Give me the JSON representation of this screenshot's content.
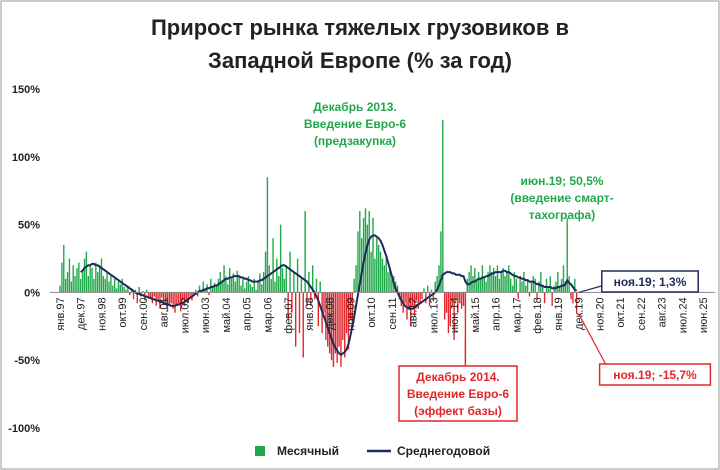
{
  "chart_data": {
    "type": "bar-line",
    "title": [
      "Прирост рынка тяжелых грузовиков в",
      "Западной Европе (% за год)"
    ],
    "categories": [
      "янв.97",
      null,
      null,
      null,
      null,
      null,
      null,
      null,
      null,
      null,
      null,
      "дек.97",
      null,
      null,
      null,
      null,
      null,
      null,
      null,
      null,
      null,
      null,
      "ноя.98",
      null,
      null,
      null,
      null,
      null,
      null,
      null,
      null,
      null,
      null,
      "окт.99",
      null,
      null,
      null,
      null,
      null,
      null,
      null,
      null,
      null,
      null,
      "сен.00",
      null,
      null,
      null,
      null,
      null,
      null,
      null,
      null,
      null,
      null,
      "авг.01",
      null,
      null,
      null,
      null,
      null,
      null,
      null,
      null,
      null,
      null,
      "июл.02",
      null,
      null,
      null,
      null,
      null,
      null,
      null,
      null,
      null,
      null,
      "июн.03",
      null,
      null,
      null,
      null,
      null,
      null,
      null,
      null,
      null,
      null,
      "май.04",
      null,
      null,
      null,
      null,
      null,
      null,
      null,
      null,
      null,
      null,
      "апр.05",
      null,
      null,
      null,
      null,
      null,
      null,
      null,
      null,
      null,
      null,
      "мар.06",
      null,
      null,
      null,
      null,
      null,
      null,
      null,
      null,
      null,
      null,
      "фев.07",
      null,
      null,
      null,
      null,
      null,
      null,
      null,
      null,
      null,
      null,
      "янв.08",
      null,
      null,
      null,
      null,
      null,
      null,
      null,
      null,
      null,
      null,
      "дек.08",
      null,
      null,
      null,
      null,
      null,
      null,
      null,
      null,
      null,
      null,
      "ноя.09",
      null,
      null,
      null,
      null,
      null,
      null,
      null,
      null,
      null,
      null,
      "окт.10",
      null,
      null,
      null,
      null,
      null,
      null,
      null,
      null,
      null,
      null,
      "сен.11",
      null,
      null,
      null,
      null,
      null,
      null,
      null,
      null,
      null,
      null,
      "авг.12",
      null,
      null,
      null,
      null,
      null,
      null,
      null,
      null,
      null,
      null,
      "июл.13",
      null,
      null,
      null,
      null,
      null,
      null,
      null,
      null,
      null,
      null,
      "июн.14",
      null,
      null,
      null,
      null,
      null,
      null,
      null,
      null,
      null,
      null,
      "май.15",
      null,
      null,
      null,
      null,
      null,
      null,
      null,
      null,
      null,
      null,
      "апр.16",
      null,
      null,
      null,
      null,
      null,
      null,
      null,
      null,
      null,
      null,
      "мар.17",
      null,
      null,
      null,
      null,
      null,
      null,
      null,
      null,
      null,
      null,
      "фев.18",
      null,
      null,
      null,
      null,
      null,
      null,
      null,
      null,
      null,
      null,
      "янв.19",
      null,
      null,
      null,
      null,
      null,
      null,
      null,
      null,
      null,
      null,
      "дек.19",
      null,
      null,
      null,
      null,
      null,
      null,
      null,
      null,
      null,
      null,
      "ноя.20",
      null,
      null,
      null,
      null,
      null,
      null,
      null,
      null,
      null,
      null,
      "окт.21",
      null,
      null,
      null,
      null,
      null,
      null,
      null,
      null,
      null,
      null,
      "сен.22",
      null,
      null,
      null,
      null,
      null,
      null,
      null,
      null,
      null,
      null,
      "авг.23",
      null,
      null,
      null,
      null,
      null,
      null,
      null,
      null,
      null,
      null,
      "июл.24",
      null,
      null,
      null,
      null,
      null,
      null,
      null,
      null,
      null,
      null,
      "июн.25"
    ],
    "series": [
      {
        "name": "Месячный",
        "kind": "bar",
        "color": "#21a84a",
        "negative_color": "#e3262b",
        "values": [
          5,
          22,
          35,
          10,
          15,
          25,
          8,
          20,
          12,
          18,
          22,
          10,
          15,
          25,
          30,
          12,
          20,
          18,
          10,
          22,
          15,
          20,
          25,
          12,
          10,
          15,
          8,
          12,
          5,
          10,
          3,
          8,
          6,
          10,
          4,
          2,
          5,
          -2,
          3,
          -5,
          2,
          -8,
          4,
          -3,
          1,
          -6,
          2,
          -4,
          -5,
          -8,
          -3,
          -10,
          -6,
          -12,
          -4,
          -9,
          -7,
          -14,
          -10,
          -8,
          -12,
          -15,
          -10,
          -8,
          -14,
          -6,
          -10,
          -5,
          -8,
          -3,
          -6,
          -2,
          2,
          -3,
          5,
          1,
          8,
          3,
          6,
          -2,
          10,
          4,
          7,
          5,
          10,
          15,
          8,
          20,
          12,
          6,
          18,
          10,
          14,
          8,
          16,
          12,
          5,
          10,
          3,
          8,
          12,
          6,
          4,
          10,
          2,
          8,
          14,
          6,
          15,
          30,
          85,
          20,
          10,
          40,
          8,
          25,
          12,
          50,
          18,
          10,
          20,
          -20,
          30,
          -15,
          15,
          -40,
          25,
          -30,
          10,
          -48,
          60,
          -10,
          15,
          -10,
          20,
          -5,
          10,
          -25,
          8,
          -30,
          -15,
          -35,
          -40,
          -45,
          -50,
          -55,
          -45,
          -52,
          -40,
          -55,
          -35,
          -48,
          -30,
          -42,
          -20,
          -25,
          10,
          20,
          45,
          60,
          40,
          55,
          62,
          50,
          60,
          30,
          55,
          25,
          40,
          35,
          30,
          25,
          20,
          25,
          15,
          18,
          10,
          12,
          8,
          5,
          -5,
          -10,
          -15,
          -8,
          -20,
          -12,
          -25,
          -10,
          -18,
          -5,
          -12,
          -8,
          -5,
          3,
          -8,
          5,
          -10,
          2,
          -6,
          8,
          12,
          20,
          45,
          127,
          -20,
          -15,
          -30,
          -25,
          -10,
          -35,
          -5,
          -15,
          -8,
          -12,
          -10,
          -60,
          10,
          15,
          20,
          12,
          18,
          8,
          15,
          10,
          20,
          12,
          8,
          15,
          20,
          15,
          18,
          12,
          20,
          10,
          15,
          18,
          12,
          15,
          20,
          10,
          5,
          15,
          10,
          -5,
          12,
          8,
          15,
          5,
          10,
          -3,
          8,
          12,
          10,
          -5,
          8,
          15,
          5,
          -8,
          10,
          3,
          12,
          -10,
          5,
          8,
          15,
          5,
          10,
          20,
          8,
          50.5,
          12,
          -5,
          -8,
          10,
          -15.7,
          null,
          null,
          null,
          null,
          null,
          null,
          null,
          null,
          null,
          null,
          null,
          null,
          null,
          null,
          null,
          null,
          null,
          null,
          null,
          null,
          null,
          null,
          null,
          null,
          null,
          null,
          null,
          null,
          null,
          null,
          null,
          null,
          null,
          null,
          null,
          null,
          null,
          null,
          null,
          null,
          null,
          null,
          null,
          null,
          null,
          null,
          null,
          null,
          null,
          null,
          null,
          null,
          null,
          null,
          null,
          null,
          null,
          null,
          null,
          null,
          null,
          null,
          null,
          null,
          null,
          null,
          null
        ]
      },
      {
        "name": "Среднегодовой",
        "kind": "line",
        "color": "#1f2a5c",
        "values": [
          null,
          null,
          null,
          null,
          null,
          null,
          null,
          null,
          null,
          null,
          null,
          15,
          16,
          18,
          19,
          20,
          20,
          21,
          21,
          20,
          20,
          19,
          18,
          17,
          16,
          15,
          14,
          13,
          12,
          11,
          10,
          9,
          8,
          7,
          6,
          5,
          4,
          3,
          2,
          1,
          0,
          -1,
          -1,
          -2,
          -2,
          -3,
          -3,
          -4,
          -4,
          -5,
          -5,
          -6,
          -6,
          -7,
          -7,
          -8,
          -8,
          -9,
          -9,
          -10,
          -10,
          -10,
          -9,
          -9,
          -8,
          -8,
          -7,
          -6,
          -5,
          -4,
          -3,
          -2,
          -1,
          0,
          1,
          1,
          2,
          2,
          3,
          3,
          4,
          4,
          5,
          5,
          6,
          7,
          8,
          9,
          10,
          10,
          11,
          11,
          12,
          12,
          12,
          12,
          11,
          11,
          10,
          10,
          9,
          9,
          8,
          8,
          8,
          8,
          9,
          9,
          10,
          11,
          12,
          13,
          14,
          15,
          16,
          17,
          18,
          19,
          20,
          20,
          19,
          18,
          17,
          16,
          15,
          14,
          13,
          12,
          11,
          10,
          9,
          8,
          6,
          4,
          2,
          0,
          -3,
          -6,
          -10,
          -14,
          -18,
          -22,
          -26,
          -30,
          -34,
          -38,
          -41,
          -43,
          -45,
          -46,
          -45,
          -44,
          -42,
          -38,
          -32,
          -25,
          -18,
          -10,
          -2,
          6,
          14,
          22,
          29,
          35,
          39,
          41,
          42,
          42,
          41,
          40,
          38,
          35,
          31,
          27,
          22,
          17,
          12,
          7,
          3,
          0,
          -3,
          -6,
          -8,
          -10,
          -11,
          -12,
          -12,
          -12,
          -11,
          -10,
          -9,
          -8,
          -7,
          -6,
          -5,
          -4,
          -3,
          -2,
          -1,
          0,
          2,
          5,
          9,
          13,
          14,
          15,
          15,
          15,
          14,
          14,
          13,
          13,
          13,
          12,
          12,
          8,
          6,
          6,
          7,
          8,
          8,
          9,
          10,
          10,
          11,
          11,
          12,
          12,
          13,
          14,
          14,
          15,
          15,
          15,
          15,
          16,
          16,
          15,
          15,
          14,
          13,
          12,
          12,
          11,
          11,
          10,
          10,
          9,
          9,
          8,
          8,
          8,
          7,
          6,
          6,
          5,
          5,
          4,
          4,
          4,
          4,
          3,
          3,
          3,
          4,
          4,
          5,
          5,
          6,
          9,
          7,
          6,
          4,
          2,
          1.3,
          null,
          null,
          null,
          null,
          null,
          null,
          null,
          null,
          null,
          null,
          null,
          null,
          null,
          null,
          null,
          null,
          null,
          null,
          null,
          null,
          null,
          null,
          null,
          null,
          null,
          null,
          null,
          null,
          null,
          null,
          null,
          null,
          null,
          null,
          null,
          null,
          null,
          null,
          null,
          null,
          null,
          null,
          null,
          null,
          null,
          null,
          null,
          null,
          null,
          null,
          null,
          null,
          null,
          null,
          null,
          null,
          null,
          null,
          null,
          null,
          null,
          null,
          null,
          null,
          null,
          null,
          null
        ]
      }
    ],
    "ylim": [
      -100,
      150
    ],
    "yticks": [
      {
        "value": -100,
        "label": "-100%"
      },
      {
        "value": -50,
        "label": "-50%"
      },
      {
        "value": 0,
        "label": "0%"
      },
      {
        "value": 50,
        "label": "50%"
      },
      {
        "value": 100,
        "label": "100%"
      },
      {
        "value": 150,
        "label": "150%"
      }
    ],
    "legend": "bottom",
    "annotations": [
      {
        "lines": [
          "Декабрь 2013.",
          "Введение Евро-6",
          "(предзакупка)"
        ],
        "color": "#21a84a"
      },
      {
        "lines": [
          "июн.19; 50,5%",
          "(введение смарт-",
          "тахографа)"
        ],
        "color": "#21a84a"
      },
      {
        "lines": [
          "Декабрь 2014.",
          "Введение Евро-6",
          "(эффект базы)"
        ],
        "color": "#e3262b"
      },
      {
        "lines": [
          "ноя.19; 1,3%"
        ],
        "color": "#1f2a5c"
      },
      {
        "lines": [
          "ноя.19; -15,7%"
        ],
        "color": "#e3262b"
      }
    ]
  }
}
